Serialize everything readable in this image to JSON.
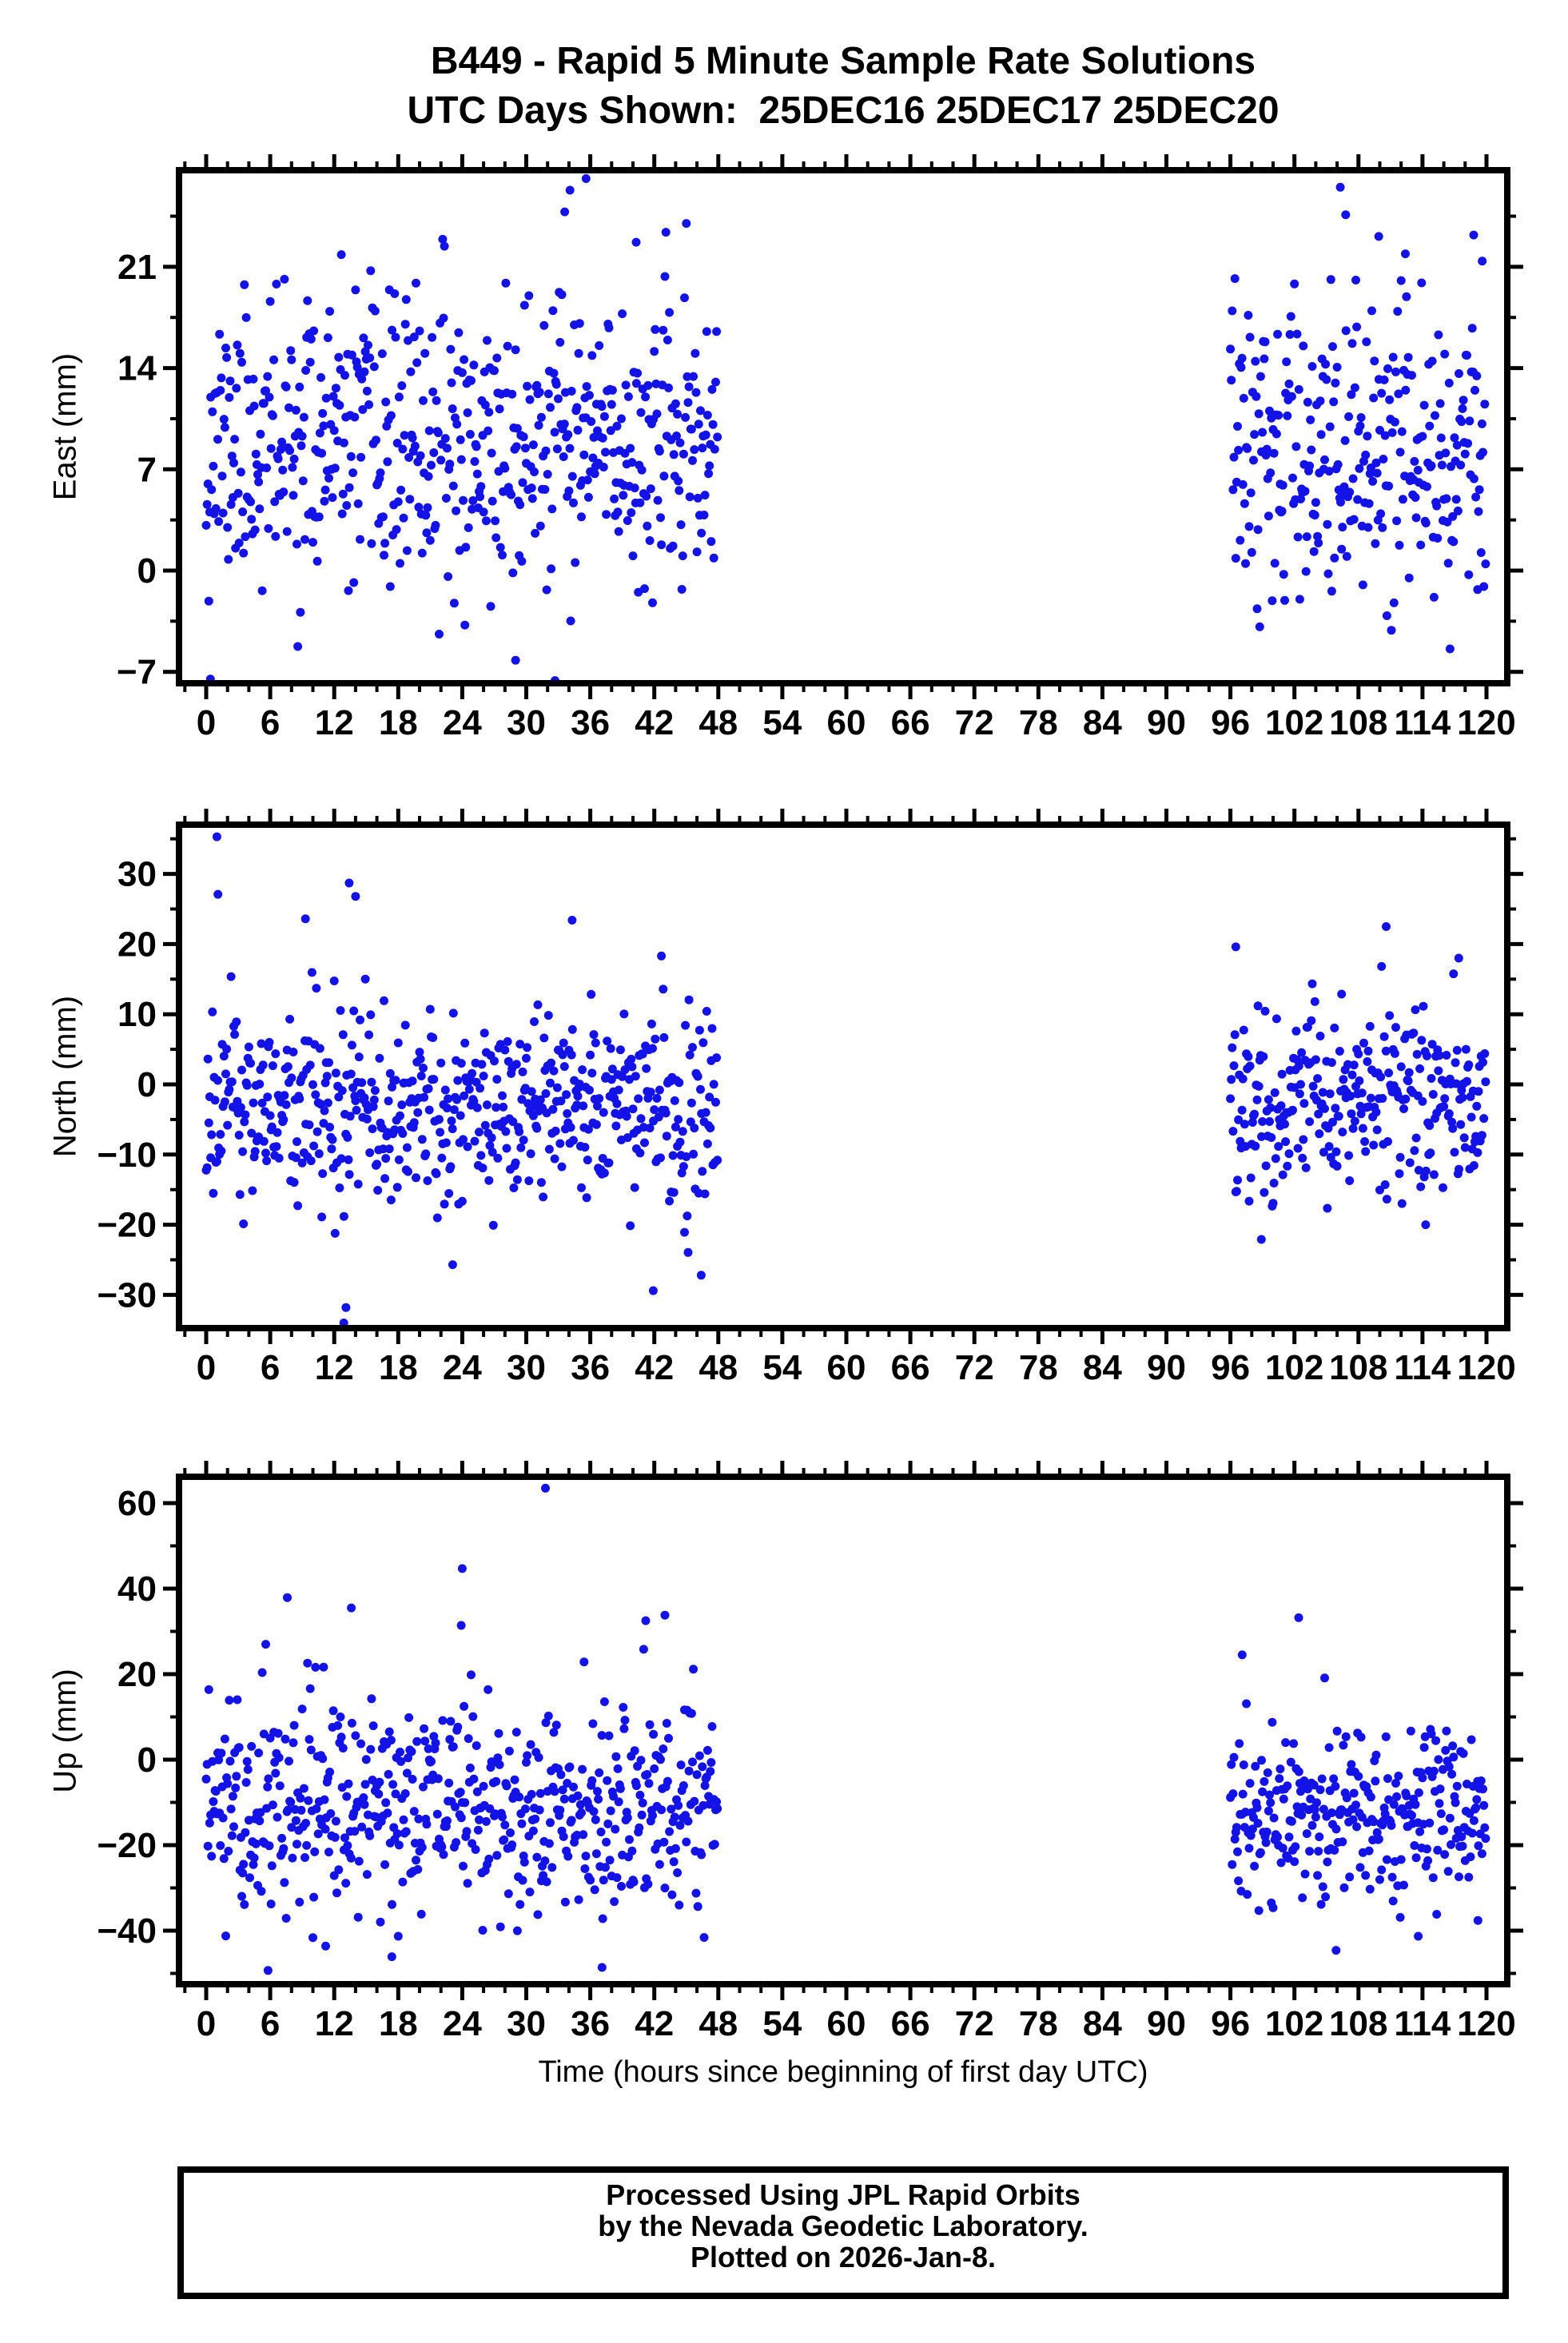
{
  "title": {
    "line1": "B449 - Rapid 5 Minute Sample Rate Solutions",
    "line2": "UTC Days Shown:  25DEC16 25DEC17 25DEC20"
  },
  "xlabel": "Time (hours since beginning of first day UTC)",
  "footer": {
    "line1": "Processed Using JPL Rapid Orbits",
    "line2": "by the Nevada Geodetic Laboratory.",
    "line3": "Plotted on 2026-Jan-8."
  },
  "colors": {
    "point": "#1313e8",
    "axis": "#000000",
    "text": "#000000",
    "background": "#ffffff"
  },
  "chart_data": [
    {
      "type": "scatter",
      "ylabel": "East (mm)",
      "ylim": [
        -7.8,
        27.7
      ],
      "yticks": [
        -7,
        0,
        7,
        14,
        21
      ],
      "y_minor_step": 3.5,
      "xlim": [
        -2.55,
        121.95
      ],
      "xticks": [
        0,
        6,
        12,
        18,
        24,
        30,
        36,
        42,
        48,
        54,
        60,
        66,
        72,
        78,
        84,
        90,
        96,
        102,
        108,
        114,
        120
      ],
      "x_minor_step": 2,
      "sampling_minutes": 5,
      "clusters": [
        {
          "x_start": 0,
          "x_end": 47.917,
          "n": 576,
          "mean": 8.7,
          "std": 4.9,
          "clip": [
            -7.2,
            24.5
          ],
          "seed": 11
        },
        {
          "x_start": 96,
          "x_end": 119.917,
          "n": 288,
          "mean": 8.3,
          "std": 5.0,
          "clip": [
            -6.2,
            23.0
          ],
          "seed": 12
        }
      ],
      "outliers": [
        [
          35.6,
          27.1
        ],
        [
          34.1,
          26.3
        ],
        [
          33.6,
          24.8
        ],
        [
          40.3,
          22.7
        ],
        [
          0.4,
          -7.5
        ],
        [
          32.7,
          -7.6
        ],
        [
          29.0,
          -6.2
        ],
        [
          106.3,
          26.5
        ],
        [
          106.8,
          24.6
        ],
        [
          109.9,
          23.1
        ],
        [
          118.8,
          23.2
        ],
        [
          112.4,
          21.9
        ],
        [
          119.6,
          21.4
        ]
      ]
    },
    {
      "type": "scatter",
      "ylabel": "North (mm)",
      "ylim": [
        -34.7,
        37.0
      ],
      "yticks": [
        -30,
        -20,
        -10,
        0,
        10,
        20,
        30
      ],
      "y_minor_step": 5,
      "xlim": [
        -2.55,
        121.95
      ],
      "xticks": [
        0,
        6,
        12,
        18,
        24,
        30,
        36,
        42,
        48,
        54,
        60,
        66,
        72,
        78,
        84,
        90,
        96,
        102,
        108,
        114,
        120
      ],
      "x_minor_step": 2,
      "sampling_minutes": 5,
      "clusters": [
        {
          "x_start": 0,
          "x_end": 47.917,
          "n": 576,
          "mean": -3.3,
          "std": 7.3,
          "clip": [
            -24.0,
            21.5
          ],
          "seed": 21
        },
        {
          "x_start": 96,
          "x_end": 119.917,
          "n": 288,
          "mean": -2.6,
          "std": 6.9,
          "clip": [
            -18.5,
            17.5
          ],
          "seed": 22
        }
      ],
      "outliers": [
        [
          1.0,
          35.3
        ],
        [
          1.1,
          27.1
        ],
        [
          13.4,
          28.7
        ],
        [
          14.0,
          26.8
        ],
        [
          9.3,
          23.6
        ],
        [
          34.3,
          23.4
        ],
        [
          12.9,
          -34.0
        ],
        [
          13.1,
          -31.8
        ],
        [
          41.9,
          -29.4
        ],
        [
          46.4,
          -27.2
        ],
        [
          23.1,
          -25.7
        ],
        [
          110.6,
          22.5
        ],
        [
          96.5,
          19.6
        ],
        [
          117.4,
          18.0
        ],
        [
          98.9,
          -22.1
        ],
        [
          114.3,
          -20.0
        ]
      ]
    },
    {
      "type": "scatter",
      "ylabel": "Up (mm)",
      "ylim": [
        -52.3,
        66.3
      ],
      "yticks": [
        -40,
        -20,
        0,
        20,
        40,
        60
      ],
      "y_minor_step": 10,
      "xlim": [
        -2.55,
        121.95
      ],
      "xticks": [
        0,
        6,
        12,
        18,
        24,
        30,
        36,
        42,
        48,
        54,
        60,
        66,
        72,
        78,
        84,
        90,
        96,
        102,
        108,
        114,
        120
      ],
      "x_minor_step": 2,
      "sampling_minutes": 5,
      "clusters": [
        {
          "x_start": 0,
          "x_end": 47.917,
          "n": 576,
          "mean": -10.5,
          "std": 13.0,
          "clip": [
            -43.0,
            30.0
          ],
          "seed": 31
        },
        {
          "x_start": 96,
          "x_end": 119.917,
          "n": 288,
          "mean": -13.0,
          "std": 11.0,
          "clip": [
            -37.0,
            26.0
          ],
          "seed": 32
        }
      ],
      "outliers": [
        [
          31.8,
          63.5
        ],
        [
          24.0,
          44.7
        ],
        [
          7.6,
          37.9
        ],
        [
          13.6,
          35.5
        ],
        [
          43.0,
          33.8
        ],
        [
          23.9,
          31.4
        ],
        [
          41.2,
          32.5
        ],
        [
          5.8,
          -49.3
        ],
        [
          37.1,
          -48.6
        ],
        [
          17.4,
          -46.1
        ],
        [
          11.2,
          -43.6
        ],
        [
          102.4,
          33.2
        ],
        [
          97.1,
          24.5
        ],
        [
          105.9,
          -44.6
        ],
        [
          113.6,
          -41.3
        ],
        [
          119.2,
          -37.6
        ]
      ]
    }
  ]
}
